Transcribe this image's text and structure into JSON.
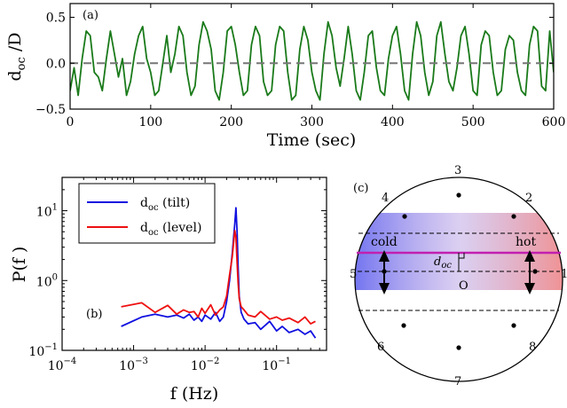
{
  "chart_data": [
    {
      "panel_label": "(a)",
      "type": "line",
      "xlabel": "Time (sec)",
      "ylabel_main": "d",
      "ylabel_sub": "oc",
      "ylabel_tail": " /D",
      "xlim": [
        0,
        600
      ],
      "ylim": [
        -0.5,
        0.65
      ],
      "xticks": [
        0,
        100,
        200,
        300,
        400,
        500,
        600
      ],
      "xtick_labels": [
        "0",
        "100",
        "200",
        "300",
        "400",
        "500",
        "600"
      ],
      "yticks": [
        -0.5,
        0.0,
        0.5
      ],
      "ytick_labels": [
        "−0.5",
        "0.0",
        "0.5"
      ],
      "reference_line": 0.0,
      "series": [
        {
          "name": "doc/D",
          "color": "#1a7a1a",
          "x": [
            0,
            5,
            10,
            15,
            20,
            25,
            30,
            35,
            40,
            45,
            50,
            55,
            60,
            65,
            70,
            75,
            80,
            85,
            90,
            95,
            100,
            105,
            110,
            115,
            120,
            125,
            130,
            135,
            140,
            145,
            150,
            155,
            160,
            165,
            170,
            175,
            180,
            185,
            190,
            195,
            200,
            205,
            210,
            215,
            220,
            225,
            230,
            235,
            240,
            245,
            250,
            255,
            260,
            265,
            270,
            275,
            280,
            285,
            290,
            295,
            300,
            305,
            310,
            315,
            320,
            325,
            330,
            335,
            340,
            345,
            350,
            355,
            360,
            365,
            370,
            375,
            380,
            385,
            390,
            395,
            400,
            405,
            410,
            415,
            420,
            425,
            430,
            435,
            440,
            445,
            450,
            455,
            460,
            465,
            470,
            475,
            480,
            485,
            490,
            495,
            500,
            505,
            510,
            515,
            520,
            525,
            530,
            535,
            540,
            545,
            550,
            555,
            560,
            565,
            570,
            575,
            580,
            585,
            590,
            595,
            600
          ],
          "y": [
            -0.3,
            -0.05,
            -0.35,
            0.05,
            0.35,
            0.3,
            -0.1,
            -0.15,
            -0.3,
            0.05,
            0.35,
            0.1,
            -0.15,
            0.05,
            -0.35,
            -0.2,
            0.1,
            0.3,
            0.4,
            0.05,
            -0.1,
            -0.35,
            -0.3,
            0.0,
            0.3,
            -0.1,
            0.1,
            0.4,
            0.3,
            -0.1,
            -0.35,
            -0.25,
            0.2,
            0.45,
            0.35,
            0.15,
            -0.3,
            -0.4,
            -0.1,
            0.35,
            0.4,
            0.2,
            -0.1,
            -0.35,
            -0.3,
            0.2,
            0.4,
            0.3,
            -0.2,
            -0.35,
            -0.3,
            0.2,
            0.4,
            0.35,
            -0.1,
            -0.4,
            -0.35,
            0.15,
            0.4,
            0.25,
            -0.1,
            -0.3,
            -0.4,
            0.1,
            0.45,
            0.3,
            -0.05,
            -0.25,
            0.05,
            0.4,
            0.1,
            -0.3,
            -0.4,
            -0.1,
            0.3,
            0.35,
            -0.05,
            -0.3,
            -0.35,
            0.05,
            0.3,
            0.4,
            0.1,
            -0.3,
            -0.4,
            0.1,
            0.45,
            0.3,
            -0.1,
            -0.35,
            -0.2,
            0.3,
            0.45,
            0.1,
            -0.2,
            -0.3,
            -0.05,
            0.3,
            0.4,
            0.1,
            -0.3,
            -0.35,
            0.2,
            0.35,
            0.3,
            -0.1,
            -0.35,
            -0.3,
            0.15,
            0.3,
            0.25,
            -0.1,
            -0.3,
            -0.35,
            0.2,
            0.4,
            0.35,
            -0.25,
            -0.3,
            0.35,
            -0.1
          ]
        }
      ]
    },
    {
      "panel_label": "(b)",
      "type": "line",
      "scale": "log-log",
      "xlabel": "f (Hz)",
      "ylabel": "P(f )",
      "xlim": [
        0.0001,
        0.5
      ],
      "ylim": [
        0.1,
        30
      ],
      "xticks": [
        0.0001,
        0.001,
        0.01,
        0.1
      ],
      "xtick_labels": [
        {
          "base": "10",
          "exp": "−4"
        },
        {
          "base": "10",
          "exp": "−3"
        },
        {
          "base": "10",
          "exp": "−2"
        },
        {
          "base": "10",
          "exp": "−1"
        }
      ],
      "yticks": [
        0.1,
        1,
        10
      ],
      "ytick_labels": [
        {
          "base": "10",
          "exp": "−1"
        },
        {
          "base": "10",
          "exp": "0"
        },
        {
          "base": "10",
          "exp": "1"
        }
      ],
      "legend": "top-left",
      "series": [
        {
          "name_main": "d",
          "name_sub": "oc",
          "name_tail": " (tilt)",
          "color": "#1010e0",
          "x": [
            0.00067,
            0.0013,
            0.002,
            0.003,
            0.004,
            0.005,
            0.006,
            0.007,
            0.008,
            0.009,
            0.01,
            0.012,
            0.014,
            0.016,
            0.018,
            0.02,
            0.022,
            0.024,
            0.026,
            0.027,
            0.028,
            0.029,
            0.03,
            0.032,
            0.035,
            0.04,
            0.05,
            0.06,
            0.08,
            0.1,
            0.12,
            0.15,
            0.2,
            0.25,
            0.3,
            0.35
          ],
          "y": [
            0.22,
            0.3,
            0.33,
            0.3,
            0.32,
            0.29,
            0.33,
            0.27,
            0.3,
            0.26,
            0.32,
            0.28,
            0.35,
            0.26,
            0.3,
            0.5,
            1.0,
            2.5,
            6.5,
            11,
            5,
            1.5,
            0.6,
            0.35,
            0.28,
            0.24,
            0.25,
            0.2,
            0.26,
            0.19,
            0.22,
            0.18,
            0.2,
            0.17,
            0.19,
            0.15
          ]
        },
        {
          "name_main": "d",
          "name_sub": "oc",
          "name_tail": " (level)",
          "color": "#ee1010",
          "x": [
            0.00067,
            0.0013,
            0.002,
            0.003,
            0.004,
            0.005,
            0.006,
            0.007,
            0.008,
            0.009,
            0.01,
            0.012,
            0.014,
            0.016,
            0.018,
            0.02,
            0.022,
            0.024,
            0.026,
            0.027,
            0.028,
            0.029,
            0.03,
            0.032,
            0.035,
            0.04,
            0.05,
            0.06,
            0.08,
            0.1,
            0.12,
            0.15,
            0.2,
            0.25,
            0.3,
            0.35
          ],
          "y": [
            0.42,
            0.48,
            0.35,
            0.44,
            0.33,
            0.38,
            0.35,
            0.36,
            0.3,
            0.4,
            0.34,
            0.45,
            0.32,
            0.38,
            0.42,
            0.6,
            1.2,
            2.2,
            5.2,
            4.2,
            1.8,
            0.9,
            0.55,
            0.42,
            0.38,
            0.32,
            0.3,
            0.36,
            0.28,
            0.3,
            0.27,
            0.29,
            0.25,
            0.3,
            0.24,
            0.26
          ]
        }
      ]
    }
  ],
  "diagram_c": {
    "panel_label": "(c)",
    "cold_label": "cold",
    "hot_label": "hot",
    "doc_main": "d",
    "doc_sub": "oc",
    "origin_label": "O",
    "port_labels": [
      "1",
      "2",
      "3",
      "4",
      "5",
      "6",
      "7",
      "8"
    ],
    "cold_color": "#6a6cf0",
    "hot_color": "#f08a8a",
    "plume_line_color": "#c21fb0"
  }
}
